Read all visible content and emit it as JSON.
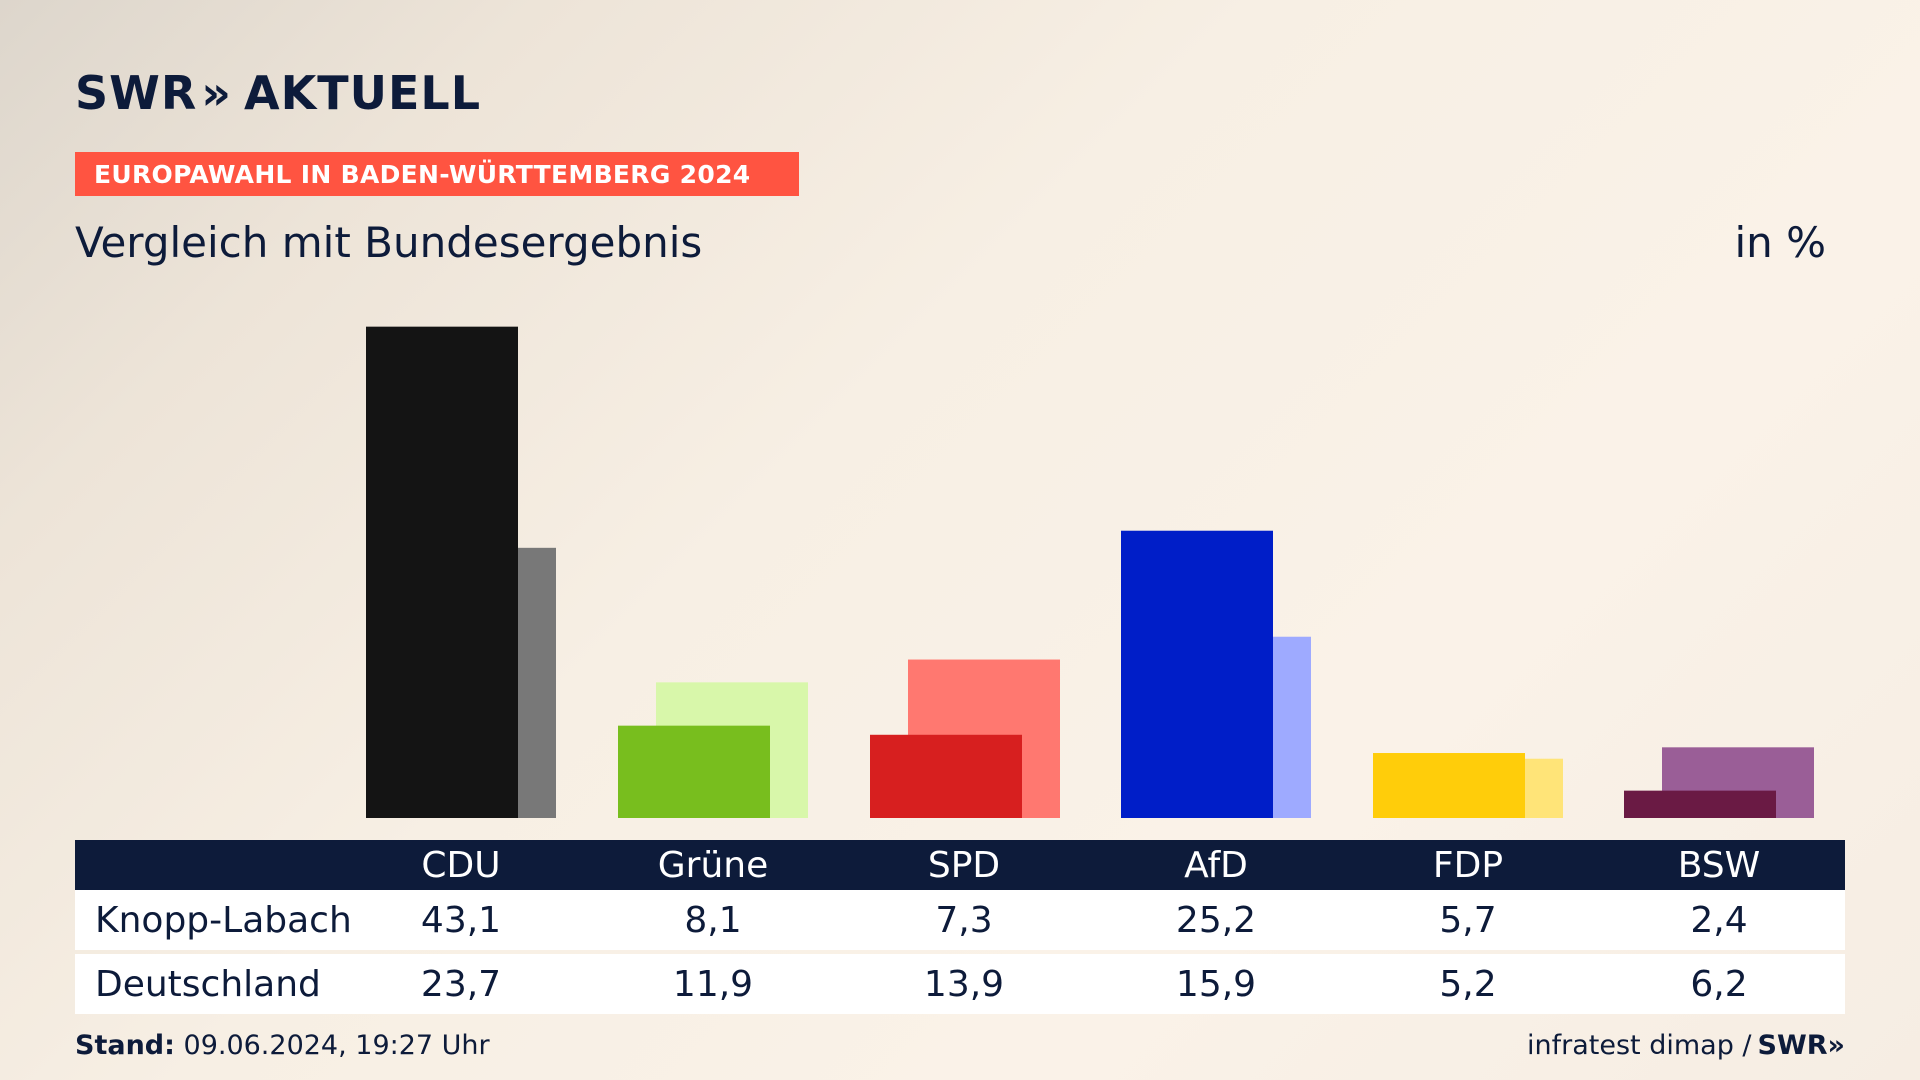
{
  "brand": {
    "logo_text_left": "SWR",
    "logo_text_right": "AKTUELL",
    "logo_chevrons": "»"
  },
  "banner": {
    "label": "EUROPAWAHL IN BADEN-WÜRTTEMBERG 2024"
  },
  "subtitle": "Vergleich mit Bundesergebnis",
  "unit": "in %",
  "chart_data": {
    "type": "bar",
    "title": "Vergleich mit Bundesergebnis",
    "unit": "in %",
    "categories": [
      "CDU",
      "Grüne",
      "SPD",
      "AfD",
      "FDP",
      "BSW"
    ],
    "series": [
      {
        "name": "Knopp-Labach",
        "values": [
          43.1,
          8.1,
          7.3,
          25.2,
          5.7,
          2.4
        ]
      },
      {
        "name": "Deutschland",
        "values": [
          23.7,
          11.9,
          13.9,
          15.9,
          5.2,
          6.2
        ]
      }
    ],
    "colors": {
      "Knopp-Labach": [
        "#141414",
        "#78be1e",
        "#d71f1f",
        "#001ec8",
        "#ffcd0a",
        "#6a1a44"
      ],
      "Deutschland": [
        "#787878",
        "#d8f7aa",
        "#ff7870",
        "#9eaaff",
        "#ffe478",
        "#9a5e97"
      ]
    },
    "ylim": [
      0,
      45
    ],
    "grid": false,
    "legend": "table-below"
  },
  "table": {
    "header": [
      "CDU",
      "Grüne",
      "SPD",
      "AfD",
      "FDP",
      "BSW"
    ],
    "rows": [
      {
        "label": "Knopp-Labach",
        "values": [
          "43,1",
          "8,1",
          "7,3",
          "25,2",
          "5,7",
          "2,4"
        ]
      },
      {
        "label": "Deutschland",
        "values": [
          "23,7",
          "11,9",
          "13,9",
          "15,9",
          "5,2",
          "6,2"
        ]
      }
    ]
  },
  "footer": {
    "stand_label": "Stand:",
    "stand_value": "09.06.2024, 19:27 Uhr",
    "source": "infratest dimap /",
    "source_brand": "SWR»"
  }
}
